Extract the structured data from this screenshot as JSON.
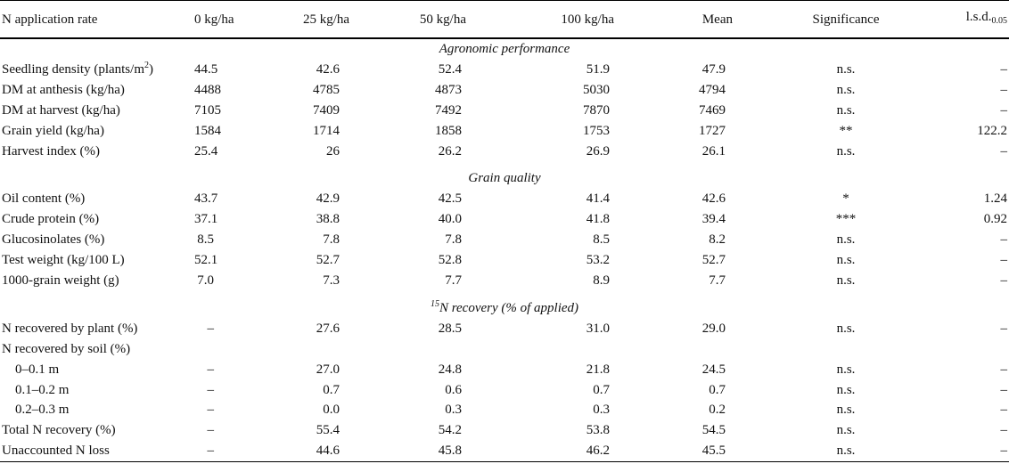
{
  "header": {
    "label": "N application rate",
    "rates": [
      "0 kg/ha",
      "25 kg/ha",
      "50 kg/ha",
      "100 kg/ha"
    ],
    "mean": "Mean",
    "significance": "Significance",
    "lsd": "l.s.d.",
    "lsd_sub": "0.05"
  },
  "sections": {
    "agronomic": "Agronomic performance",
    "quality": "Grain quality",
    "recovery_sup": "15",
    "recovery": "N recovery (% of applied)"
  },
  "agronomic_rows": [
    {
      "label": "Seedling density (plants/m",
      "sup": "2",
      "tail": ")",
      "values": [
        "44.5",
        "42.6",
        "52.4",
        "51.9",
        "47.9"
      ],
      "sig": "n.s.",
      "lsd": "–"
    },
    {
      "label": "DM at anthesis (kg/ha)",
      "values": [
        "4488",
        "4785",
        "4873",
        "5030",
        "4794"
      ],
      "sig": "n.s.",
      "lsd": "–"
    },
    {
      "label": "DM at harvest (kg/ha)",
      "values": [
        "7105",
        "7409",
        "7492",
        "7870",
        "7469"
      ],
      "sig": "n.s.",
      "lsd": "–"
    },
    {
      "label": "Grain yield (kg/ha)",
      "values": [
        "1584",
        "1714",
        "1858",
        "1753",
        "1727"
      ],
      "sig": "**",
      "lsd": "122.2"
    },
    {
      "label": "Harvest index (%)",
      "values": [
        "25.4",
        "26",
        "26.2",
        "26.9",
        "26.1"
      ],
      "sig": "n.s.",
      "lsd": "–"
    }
  ],
  "quality_rows": [
    {
      "label": "Oil content (%)",
      "values": [
        "43.7",
        "42.9",
        "42.5",
        "41.4",
        "42.6"
      ],
      "sig": "*",
      "lsd": "1.24"
    },
    {
      "label": "Crude protein (%)",
      "values": [
        "37.1",
        "38.8",
        "40.0",
        "41.8",
        "39.4"
      ],
      "sig": "***",
      "lsd": "0.92"
    },
    {
      "label": "Glucosinolates (%)",
      "values": [
        "8.5",
        "7.8",
        "7.8",
        "8.5",
        "8.2"
      ],
      "sig": "n.s.",
      "lsd": "–"
    },
    {
      "label": "Test weight (kg/100 L)",
      "values": [
        "52.1",
        "52.7",
        "52.8",
        "53.2",
        "52.7"
      ],
      "sig": "n.s.",
      "lsd": "–"
    },
    {
      "label": "1000-grain weight (g)",
      "values": [
        "7.0",
        "7.3",
        "7.7",
        "8.9",
        "7.7"
      ],
      "sig": "n.s.",
      "lsd": "–"
    }
  ],
  "recovery_rows": [
    {
      "label": "N recovered by plant (%)",
      "values": [
        "–",
        "27.6",
        "28.5",
        "31.0",
        "29.0"
      ],
      "sig": "n.s.",
      "lsd": "–"
    },
    {
      "label": "N recovered by soil (%)",
      "values": [
        "",
        "",
        "",
        "",
        ""
      ],
      "sig": "",
      "lsd": ""
    },
    {
      "label": "0–0.1 m",
      "values": [
        "–",
        "27.0",
        "24.8",
        "21.8",
        "24.5"
      ],
      "sig": "n.s.",
      "lsd": "–"
    },
    {
      "label": "0.1–0.2 m",
      "values": [
        "–",
        "0.7",
        "0.6",
        "0.7",
        "0.7"
      ],
      "sig": "n.s.",
      "lsd": "–"
    },
    {
      "label": "0.2–0.3 m",
      "values": [
        "–",
        "0.0",
        "0.3",
        "0.3",
        "0.2"
      ],
      "sig": "n.s.",
      "lsd": "–"
    },
    {
      "label": "Total N recovery (%)",
      "values": [
        "–",
        "55.4",
        "54.2",
        "53.8",
        "54.5"
      ],
      "sig": "n.s.",
      "lsd": "–"
    },
    {
      "label": "Unaccounted N loss",
      "values": [
        "–",
        "44.6",
        "45.8",
        "46.2",
        "45.5"
      ],
      "sig": "n.s.",
      "lsd": "–"
    }
  ]
}
